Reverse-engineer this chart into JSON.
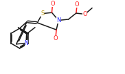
{
  "bg_color": "#ffffff",
  "bond_color": "#1a1a1a",
  "atom_colors": {
    "N": "#2020ff",
    "O": "#ff2020",
    "S": "#b8960c",
    "C": "#1a1a1a"
  },
  "figsize": [
    1.82,
    1.07
  ],
  "dpi": 100,
  "lw": 1.1,
  "fs": 5.5
}
